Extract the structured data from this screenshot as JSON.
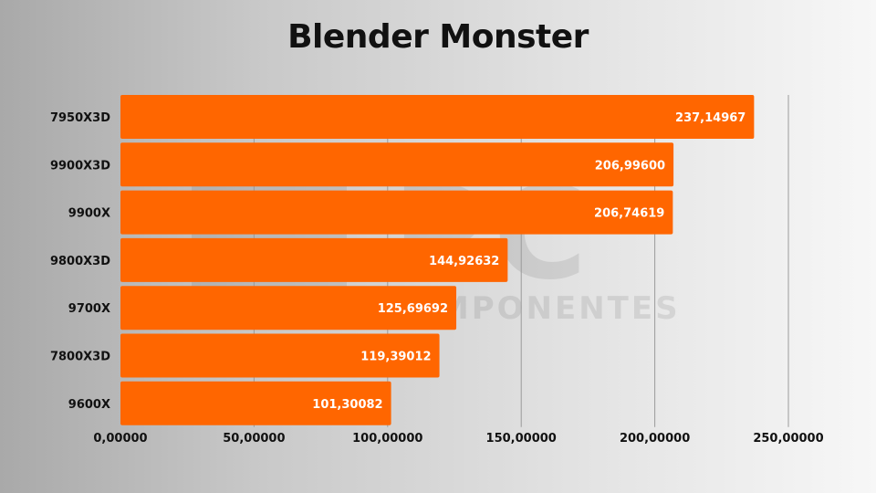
{
  "brand_watermark": "PC COMPONENTES",
  "chart_data": {
    "type": "bar",
    "orientation": "horizontal",
    "title": "Blender Monster",
    "categories": [
      "7950X3D",
      "9900X3D",
      "9900X",
      "9800X3D",
      "9700X",
      "7800X3D",
      "9600X"
    ],
    "values": [
      237.14967,
      206.996,
      206.74619,
      144.92632,
      125.69692,
      119.39012,
      101.30082
    ],
    "value_labels": [
      "237,14967",
      "206,99600",
      "206,74619",
      "144,92632",
      "125,69692",
      "119,39012",
      "101,30082"
    ],
    "x_ticks": [
      0,
      50,
      100,
      150,
      200,
      250
    ],
    "x_tick_labels": [
      "0,00000",
      "50,00000",
      "100,00000",
      "150,00000",
      "200,00000",
      "250,00000"
    ],
    "xlim": [
      0,
      250
    ],
    "bar_color": "#ff6600",
    "grid": true,
    "legend": "none"
  }
}
